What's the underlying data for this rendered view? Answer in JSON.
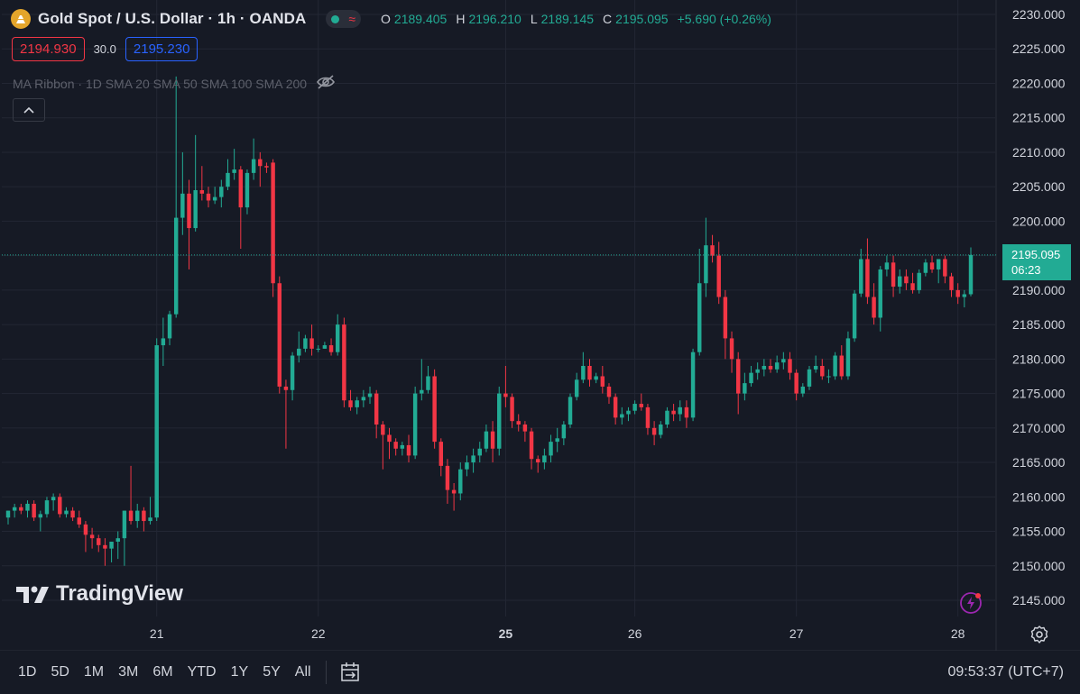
{
  "header": {
    "symbol_title": "Gold Spot / U.S. Dollar · 1h · OANDA",
    "ohlc": {
      "o_label": "O",
      "o_value": "2189.405",
      "h_label": "H",
      "h_value": "2196.210",
      "l_label": "L",
      "l_value": "2189.145",
      "c_label": "C",
      "c_value": "2195.095",
      "change": "+5.690 (+0.26%)"
    },
    "bid": "2194.930",
    "spread": "30.0",
    "ask": "2195.230",
    "indicator": "MA Ribbon · 1D SMA 20 SMA 50 SMA 100 SMA 200"
  },
  "price_tag": {
    "price": "2195.095",
    "countdown": "06:23"
  },
  "watermark": "TradingView",
  "bottom_bar": {
    "ranges": [
      "1D",
      "5D",
      "1M",
      "3M",
      "6M",
      "YTD",
      "1Y",
      "5Y",
      "All"
    ],
    "clock": "09:53:37 (UTC+7)"
  },
  "colors": {
    "up": "#22ab94",
    "down": "#f23645",
    "background": "#161a25",
    "grid": "#232734",
    "accent_blue": "#2962ff"
  },
  "icons": [
    "gold-coin-icon",
    "eye-off-icon",
    "chevron-up-icon",
    "lightning-icon",
    "gear-icon",
    "calendar-range-icon"
  ],
  "chart_data": {
    "type": "candlestick",
    "title": "Gold Spot / U.S. Dollar · 1h · OANDA",
    "ylim": [
      2141,
      2232
    ],
    "y_ticks": [
      2230,
      2225,
      2220,
      2215,
      2210,
      2205,
      2200,
      2195,
      2190,
      2185,
      2180,
      2175,
      2170,
      2165,
      2160,
      2155,
      2150,
      2145
    ],
    "y_tick_labels": [
      "2230.000",
      "2225.000",
      "2220.000",
      "2215.000",
      "2210.000",
      "2205.000",
      "2200.000",
      "2195.000",
      "2190.000",
      "2185.000",
      "2180.000",
      "2175.000",
      "2170.000",
      "2165.000",
      "2160.000",
      "2155.000",
      "2150.000",
      "2145.000"
    ],
    "x_tick_labels": [
      {
        "label": "21",
        "bar": 23
      },
      {
        "label": "22",
        "bar": 48
      },
      {
        "label": "25",
        "bar": 77
      },
      {
        "label": "26",
        "bar": 97
      },
      {
        "label": "27",
        "bar": 122
      },
      {
        "label": "28",
        "bar": 147
      }
    ],
    "last_price": 2195.095,
    "candles": [
      {
        "o": 2157.0,
        "h": 2158.0,
        "l": 2156.0,
        "c": 2158.0
      },
      {
        "o": 2158.0,
        "h": 2159.0,
        "l": 2157.0,
        "c": 2158.5
      },
      {
        "o": 2158.5,
        "h": 2159.0,
        "l": 2157.5,
        "c": 2158.0
      },
      {
        "o": 2158.0,
        "h": 2159.5,
        "l": 2157.0,
        "c": 2159.0
      },
      {
        "o": 2159.0,
        "h": 2159.5,
        "l": 2156.5,
        "c": 2157.0
      },
      {
        "o": 2157.0,
        "h": 2158.0,
        "l": 2155.0,
        "c": 2157.5
      },
      {
        "o": 2157.5,
        "h": 2160.0,
        "l": 2157.0,
        "c": 2159.5
      },
      {
        "o": 2159.5,
        "h": 2160.5,
        "l": 2158.0,
        "c": 2160.0
      },
      {
        "o": 2160.0,
        "h": 2160.5,
        "l": 2157.0,
        "c": 2157.5
      },
      {
        "o": 2157.5,
        "h": 2158.5,
        "l": 2157.0,
        "c": 2158.0
      },
      {
        "o": 2158.0,
        "h": 2158.5,
        "l": 2156.5,
        "c": 2157.0
      },
      {
        "o": 2157.0,
        "h": 2158.0,
        "l": 2155.5,
        "c": 2156.0
      },
      {
        "o": 2156.0,
        "h": 2156.5,
        "l": 2152.0,
        "c": 2154.5
      },
      {
        "o": 2154.5,
        "h": 2155.5,
        "l": 2152.5,
        "c": 2154.0
      },
      {
        "o": 2154.0,
        "h": 2154.5,
        "l": 2152.0,
        "c": 2153.0
      },
      {
        "o": 2153.0,
        "h": 2154.0,
        "l": 2150.0,
        "c": 2152.5
      },
      {
        "o": 2152.5,
        "h": 2153.5,
        "l": 2150.5,
        "c": 2153.5
      },
      {
        "o": 2153.5,
        "h": 2155.0,
        "l": 2151.0,
        "c": 2154.0
      },
      {
        "o": 2154.0,
        "h": 2158.0,
        "l": 2150.0,
        "c": 2158.0
      },
      {
        "o": 2158.0,
        "h": 2164.5,
        "l": 2156.0,
        "c": 2156.5
      },
      {
        "o": 2156.5,
        "h": 2159.0,
        "l": 2155.5,
        "c": 2158.0
      },
      {
        "o": 2158.0,
        "h": 2158.5,
        "l": 2155.0,
        "c": 2156.5
      },
      {
        "o": 2156.5,
        "h": 2160.0,
        "l": 2156.0,
        "c": 2157.0
      },
      {
        "o": 2157.0,
        "h": 2183.0,
        "l": 2156.5,
        "c": 2182.0
      },
      {
        "o": 2182.0,
        "h": 2186.0,
        "l": 2179.0,
        "c": 2183.0
      },
      {
        "o": 2183.0,
        "h": 2187.0,
        "l": 2182.0,
        "c": 2186.5
      },
      {
        "o": 2186.5,
        "h": 2221.0,
        "l": 2186.0,
        "c": 2200.5
      },
      {
        "o": 2200.5,
        "h": 2210.0,
        "l": 2198.0,
        "c": 2204.0
      },
      {
        "o": 2204.0,
        "h": 2206.0,
        "l": 2193.0,
        "c": 2199.0
      },
      {
        "o": 2199.0,
        "h": 2212.5,
        "l": 2198.5,
        "c": 2204.5
      },
      {
        "o": 2204.5,
        "h": 2208.0,
        "l": 2203.0,
        "c": 2204.0
      },
      {
        "o": 2204.0,
        "h": 2205.0,
        "l": 2202.0,
        "c": 2203.0
      },
      {
        "o": 2203.0,
        "h": 2205.0,
        "l": 2202.5,
        "c": 2203.5
      },
      {
        "o": 2203.5,
        "h": 2206.0,
        "l": 2202.0,
        "c": 2205.0
      },
      {
        "o": 2205.0,
        "h": 2209.0,
        "l": 2204.5,
        "c": 2207.0
      },
      {
        "o": 2207.0,
        "h": 2210.5,
        "l": 2206.0,
        "c": 2207.5
      },
      {
        "o": 2207.5,
        "h": 2208.0,
        "l": 2196.0,
        "c": 2202.0
      },
      {
        "o": 2202.0,
        "h": 2207.5,
        "l": 2201.0,
        "c": 2207.0
      },
      {
        "o": 2207.0,
        "h": 2212.0,
        "l": 2206.0,
        "c": 2209.0
      },
      {
        "o": 2209.0,
        "h": 2210.0,
        "l": 2205.0,
        "c": 2208.0
      },
      {
        "o": 2208.0,
        "h": 2208.5,
        "l": 2207.0,
        "c": 2207.8
      },
      {
        "o": 2208.5,
        "h": 2209.0,
        "l": 2189.0,
        "c": 2191.0
      },
      {
        "o": 2191.0,
        "h": 2192.0,
        "l": 2175.0,
        "c": 2176.0
      },
      {
        "o": 2176.0,
        "h": 2177.0,
        "l": 2167.0,
        "c": 2175.5
      },
      {
        "o": 2175.5,
        "h": 2181.0,
        "l": 2174.0,
        "c": 2180.5
      },
      {
        "o": 2180.5,
        "h": 2184.0,
        "l": 2179.5,
        "c": 2181.5
      },
      {
        "o": 2181.5,
        "h": 2183.5,
        "l": 2181.0,
        "c": 2183.0
      },
      {
        "o": 2183.0,
        "h": 2185.0,
        "l": 2180.5,
        "c": 2181.5
      },
      {
        "o": 2181.5,
        "h": 2182.0,
        "l": 2181.0,
        "c": 2181.5
      },
      {
        "o": 2181.5,
        "h": 2182.5,
        "l": 2181.5,
        "c": 2182.0
      },
      {
        "o": 2182.0,
        "h": 2183.0,
        "l": 2180.5,
        "c": 2181.0
      },
      {
        "o": 2181.0,
        "h": 2186.5,
        "l": 2180.5,
        "c": 2185.0
      },
      {
        "o": 2185.0,
        "h": 2186.0,
        "l": 2173.0,
        "c": 2174.0
      },
      {
        "o": 2174.0,
        "h": 2175.5,
        "l": 2172.5,
        "c": 2173.0
      },
      {
        "o": 2173.0,
        "h": 2174.5,
        "l": 2172.0,
        "c": 2174.0
      },
      {
        "o": 2174.0,
        "h": 2175.5,
        "l": 2173.0,
        "c": 2174.5
      },
      {
        "o": 2174.5,
        "h": 2176.0,
        "l": 2173.5,
        "c": 2175.0
      },
      {
        "o": 2175.0,
        "h": 2175.5,
        "l": 2168.5,
        "c": 2170.5
      },
      {
        "o": 2170.5,
        "h": 2171.0,
        "l": 2164.0,
        "c": 2169.0
      },
      {
        "o": 2169.0,
        "h": 2170.0,
        "l": 2165.5,
        "c": 2168.0
      },
      {
        "o": 2168.0,
        "h": 2168.5,
        "l": 2166.0,
        "c": 2167.0
      },
      {
        "o": 2167.0,
        "h": 2168.0,
        "l": 2166.0,
        "c": 2167.5
      },
      {
        "o": 2167.5,
        "h": 2169.0,
        "l": 2165.0,
        "c": 2166.0
      },
      {
        "o": 2166.0,
        "h": 2176.0,
        "l": 2165.5,
        "c": 2175.0
      },
      {
        "o": 2175.0,
        "h": 2180.0,
        "l": 2174.0,
        "c": 2175.5
      },
      {
        "o": 2175.5,
        "h": 2179.0,
        "l": 2175.0,
        "c": 2177.5
      },
      {
        "o": 2177.5,
        "h": 2178.5,
        "l": 2167.0,
        "c": 2168.0
      },
      {
        "o": 2168.0,
        "h": 2168.5,
        "l": 2163.0,
        "c": 2164.5
      },
      {
        "o": 2164.5,
        "h": 2165.5,
        "l": 2159.0,
        "c": 2161.0
      },
      {
        "o": 2161.0,
        "h": 2162.0,
        "l": 2158.0,
        "c": 2160.5
      },
      {
        "o": 2160.5,
        "h": 2165.0,
        "l": 2159.5,
        "c": 2164.0
      },
      {
        "o": 2164.0,
        "h": 2166.0,
        "l": 2163.0,
        "c": 2165.0
      },
      {
        "o": 2165.0,
        "h": 2167.0,
        "l": 2163.5,
        "c": 2166.0
      },
      {
        "o": 2166.0,
        "h": 2168.0,
        "l": 2165.0,
        "c": 2167.0
      },
      {
        "o": 2167.0,
        "h": 2170.5,
        "l": 2166.5,
        "c": 2169.5
      },
      {
        "o": 2169.5,
        "h": 2171.0,
        "l": 2165.0,
        "c": 2167.0
      },
      {
        "o": 2167.0,
        "h": 2176.0,
        "l": 2166.0,
        "c": 2175.0
      },
      {
        "o": 2175.0,
        "h": 2179.0,
        "l": 2173.0,
        "c": 2174.5
      },
      {
        "o": 2174.5,
        "h": 2175.0,
        "l": 2170.0,
        "c": 2171.0
      },
      {
        "o": 2171.0,
        "h": 2172.0,
        "l": 2169.5,
        "c": 2170.5
      },
      {
        "o": 2170.5,
        "h": 2171.0,
        "l": 2168.0,
        "c": 2169.5
      },
      {
        "o": 2169.5,
        "h": 2170.0,
        "l": 2164.0,
        "c": 2165.5
      },
      {
        "o": 2165.5,
        "h": 2166.0,
        "l": 2163.5,
        "c": 2165.0
      },
      {
        "o": 2165.0,
        "h": 2167.0,
        "l": 2164.0,
        "c": 2166.0
      },
      {
        "o": 2166.0,
        "h": 2169.0,
        "l": 2165.0,
        "c": 2168.0
      },
      {
        "o": 2168.0,
        "h": 2170.0,
        "l": 2166.5,
        "c": 2168.5
      },
      {
        "o": 2168.5,
        "h": 2171.0,
        "l": 2167.5,
        "c": 2170.5
      },
      {
        "o": 2170.5,
        "h": 2175.0,
        "l": 2170.0,
        "c": 2174.5
      },
      {
        "o": 2174.5,
        "h": 2178.0,
        "l": 2174.0,
        "c": 2177.0
      },
      {
        "o": 2177.0,
        "h": 2181.0,
        "l": 2176.5,
        "c": 2179.0
      },
      {
        "o": 2179.0,
        "h": 2180.0,
        "l": 2176.0,
        "c": 2177.0
      },
      {
        "o": 2177.0,
        "h": 2178.0,
        "l": 2176.5,
        "c": 2177.5
      },
      {
        "o": 2177.5,
        "h": 2179.0,
        "l": 2175.0,
        "c": 2176.0
      },
      {
        "o": 2176.0,
        "h": 2176.5,
        "l": 2173.5,
        "c": 2174.5
      },
      {
        "o": 2174.5,
        "h": 2175.0,
        "l": 2170.5,
        "c": 2171.5
      },
      {
        "o": 2171.5,
        "h": 2173.0,
        "l": 2170.5,
        "c": 2172.0
      },
      {
        "o": 2172.0,
        "h": 2173.0,
        "l": 2171.0,
        "c": 2172.5
      },
      {
        "o": 2172.5,
        "h": 2174.0,
        "l": 2172.0,
        "c": 2173.5
      },
      {
        "o": 2173.5,
        "h": 2175.0,
        "l": 2172.5,
        "c": 2173.0
      },
      {
        "o": 2173.0,
        "h": 2173.5,
        "l": 2169.0,
        "c": 2170.0
      },
      {
        "o": 2170.0,
        "h": 2171.0,
        "l": 2167.5,
        "c": 2169.0
      },
      {
        "o": 2169.0,
        "h": 2171.0,
        "l": 2168.5,
        "c": 2170.5
      },
      {
        "o": 2170.5,
        "h": 2173.0,
        "l": 2170.0,
        "c": 2172.5
      },
      {
        "o": 2172.5,
        "h": 2173.5,
        "l": 2171.0,
        "c": 2172.0
      },
      {
        "o": 2172.0,
        "h": 2174.0,
        "l": 2171.0,
        "c": 2173.0
      },
      {
        "o": 2173.0,
        "h": 2174.0,
        "l": 2170.0,
        "c": 2171.5
      },
      {
        "o": 2171.5,
        "h": 2181.5,
        "l": 2171.0,
        "c": 2181.0
      },
      {
        "o": 2181.0,
        "h": 2196.0,
        "l": 2180.5,
        "c": 2191.0
      },
      {
        "o": 2191.0,
        "h": 2200.5,
        "l": 2189.0,
        "c": 2196.5
      },
      {
        "o": 2196.5,
        "h": 2198.0,
        "l": 2194.0,
        "c": 2195.0
      },
      {
        "o": 2195.0,
        "h": 2197.0,
        "l": 2188.0,
        "c": 2189.0
      },
      {
        "o": 2189.0,
        "h": 2190.0,
        "l": 2180.0,
        "c": 2183.0
      },
      {
        "o": 2183.0,
        "h": 2184.0,
        "l": 2178.0,
        "c": 2180.0
      },
      {
        "o": 2180.0,
        "h": 2181.0,
        "l": 2172.0,
        "c": 2175.0
      },
      {
        "o": 2175.0,
        "h": 2178.0,
        "l": 2174.0,
        "c": 2176.5
      },
      {
        "o": 2176.5,
        "h": 2179.0,
        "l": 2176.0,
        "c": 2178.0
      },
      {
        "o": 2178.0,
        "h": 2179.5,
        "l": 2177.0,
        "c": 2178.5
      },
      {
        "o": 2178.5,
        "h": 2180.0,
        "l": 2177.5,
        "c": 2179.0
      },
      {
        "o": 2179.0,
        "h": 2180.0,
        "l": 2178.0,
        "c": 2178.5
      },
      {
        "o": 2178.5,
        "h": 2180.5,
        "l": 2178.0,
        "c": 2179.5
      },
      {
        "o": 2179.5,
        "h": 2181.0,
        "l": 2178.5,
        "c": 2180.0
      },
      {
        "o": 2180.0,
        "h": 2181.0,
        "l": 2177.0,
        "c": 2178.0
      },
      {
        "o": 2178.0,
        "h": 2178.5,
        "l": 2174.0,
        "c": 2175.0
      },
      {
        "o": 2175.0,
        "h": 2176.5,
        "l": 2174.5,
        "c": 2176.0
      },
      {
        "o": 2176.0,
        "h": 2179.0,
        "l": 2175.5,
        "c": 2178.5
      },
      {
        "o": 2178.5,
        "h": 2180.5,
        "l": 2178.0,
        "c": 2179.0
      },
      {
        "o": 2179.0,
        "h": 2180.0,
        "l": 2177.0,
        "c": 2177.5
      },
      {
        "o": 2177.5,
        "h": 2178.5,
        "l": 2176.5,
        "c": 2177.5
      },
      {
        "o": 2177.5,
        "h": 2181.0,
        "l": 2177.0,
        "c": 2180.5
      },
      {
        "o": 2180.5,
        "h": 2182.0,
        "l": 2177.0,
        "c": 2177.5
      },
      {
        "o": 2177.5,
        "h": 2184.0,
        "l": 2177.0,
        "c": 2183.0
      },
      {
        "o": 2183.0,
        "h": 2190.0,
        "l": 2182.5,
        "c": 2189.5
      },
      {
        "o": 2189.5,
        "h": 2196.0,
        "l": 2189.0,
        "c": 2194.5
      },
      {
        "o": 2194.5,
        "h": 2197.5,
        "l": 2188.0,
        "c": 2189.0
      },
      {
        "o": 2189.0,
        "h": 2191.0,
        "l": 2185.0,
        "c": 2186.0
      },
      {
        "o": 2186.0,
        "h": 2193.5,
        "l": 2184.0,
        "c": 2193.0
      },
      {
        "o": 2193.0,
        "h": 2195.0,
        "l": 2192.0,
        "c": 2194.0
      },
      {
        "o": 2194.0,
        "h": 2195.0,
        "l": 2189.0,
        "c": 2190.5
      },
      {
        "o": 2190.5,
        "h": 2193.0,
        "l": 2189.5,
        "c": 2192.0
      },
      {
        "o": 2192.0,
        "h": 2193.0,
        "l": 2190.0,
        "c": 2191.0
      },
      {
        "o": 2191.0,
        "h": 2192.5,
        "l": 2189.5,
        "c": 2190.0
      },
      {
        "o": 2190.0,
        "h": 2193.0,
        "l": 2189.5,
        "c": 2192.5
      },
      {
        "o": 2192.5,
        "h": 2194.5,
        "l": 2192.0,
        "c": 2194.0
      },
      {
        "o": 2194.0,
        "h": 2195.0,
        "l": 2192.5,
        "c": 2193.0
      },
      {
        "o": 2193.0,
        "h": 2194.5,
        "l": 2191.0,
        "c": 2194.5
      },
      {
        "o": 2194.5,
        "h": 2195.0,
        "l": 2191.0,
        "c": 2192.0
      },
      {
        "o": 2192.0,
        "h": 2192.5,
        "l": 2189.0,
        "c": 2190.0
      },
      {
        "o": 2190.0,
        "h": 2191.0,
        "l": 2188.0,
        "c": 2189.0
      },
      {
        "o": 2189.0,
        "h": 2190.0,
        "l": 2187.5,
        "c": 2189.4
      },
      {
        "o": 2189.4,
        "h": 2196.2,
        "l": 2189.1,
        "c": 2195.1
      }
    ]
  }
}
